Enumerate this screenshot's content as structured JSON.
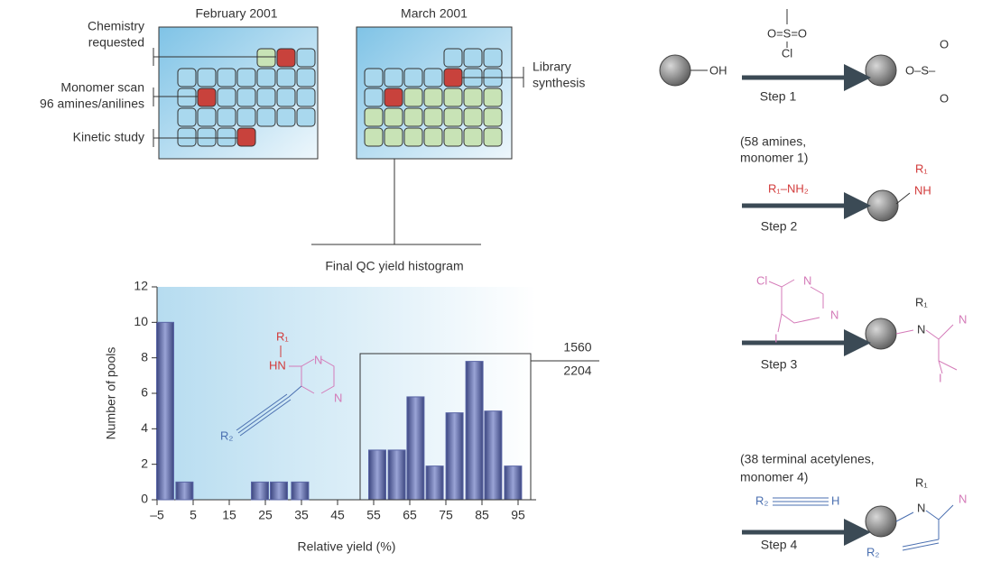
{
  "plates": {
    "february": "February 2001",
    "march": "March 2001",
    "labels": {
      "chemistry": [
        "Chemistry",
        "requested"
      ],
      "monomer_scan": [
        "Monomer scan",
        "96 amines/anilines"
      ],
      "kinetic": "Kinetic study",
      "library": [
        "Library",
        "synthesis"
      ]
    }
  },
  "chart_data": {
    "type": "bar",
    "title": "Final QC yield histogram",
    "x_label": "Relative yield (%)",
    "y_label": "Number of pools",
    "x": [
      -2.75,
      2.6,
      23.5,
      28.75,
      34.6,
      56,
      61.4,
      66.6,
      71.9,
      77.4,
      82.9,
      88.1,
      93.6
    ],
    "values": [
      10,
      1,
      1,
      1,
      1,
      2.8,
      2.8,
      5.8,
      1.9,
      4.9,
      7.8,
      5.0,
      1.9
    ],
    "color": "#5a66a6",
    "xlim": [
      -5,
      95
    ],
    "xticks": [
      {
        "value": -5,
        "label": "–5"
      },
      5,
      15,
      25,
      35,
      45,
      55,
      65,
      75,
      85,
      95
    ],
    "ylim": [
      0,
      12
    ],
    "yticks": [
      0,
      2,
      4,
      6,
      8,
      10,
      12
    ],
    "annotation": {
      "numerator": "1560",
      "denominator": "2204"
    },
    "inset": {
      "r1": "R₁",
      "hn": "HN",
      "n1": "N",
      "n2": "N",
      "r2": "R₂"
    }
  },
  "reaction": {
    "step1": {
      "start": "OH",
      "reagent": "O=S=O",
      "cl": "Cl",
      "label": "Step 1",
      "product": "O–S–",
      "o_top": "O",
      "o_bottom": "O"
    },
    "step2": {
      "note": [
        "(58 amines,",
        "monomer 1)"
      ],
      "reagent": "R₁–NH₂",
      "label": "Step 2",
      "r1": "R₁",
      "nh": "NH"
    },
    "step3": {
      "cl": "Cl",
      "n1": "N",
      "n2": "N",
      "i": "I",
      "label": "Step 3",
      "r1": "R₁",
      "n": "N",
      "pn": "N",
      "pi": "I"
    },
    "step4": {
      "note": [
        "(38 terminal acetylenes,",
        "monomer 4)"
      ],
      "r2": "R₂",
      "h": "H",
      "label": "Step 4",
      "r1": "R₁",
      "n": "N",
      "pn": "N",
      "pr2": "R₂"
    }
  }
}
